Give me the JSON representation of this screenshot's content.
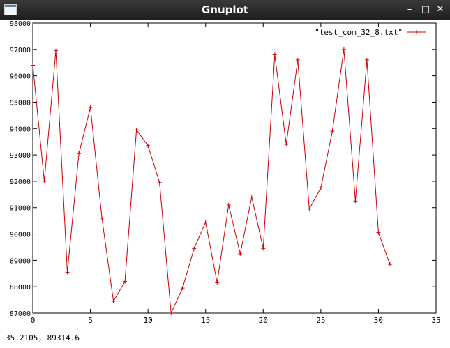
{
  "window": {
    "title": "Gnuplot",
    "icons": {
      "app": "window-icon",
      "minimize": "minimize-icon",
      "maximize": "maximize-icon",
      "close": "close-icon"
    }
  },
  "status": {
    "coordinates": "35.2105,  89314.6"
  },
  "chart_data": {
    "type": "line",
    "title": "",
    "xlabel": "",
    "ylabel": "",
    "xlim": [
      0,
      35
    ],
    "ylim": [
      87000,
      98000
    ],
    "x_ticks": [
      0,
      5,
      10,
      15,
      20,
      25,
      30,
      35
    ],
    "y_ticks": [
      87000,
      88000,
      89000,
      90000,
      91000,
      92000,
      93000,
      94000,
      95000,
      96000,
      97000,
      98000
    ],
    "grid": false,
    "legend_position": "top-right",
    "series": [
      {
        "name": "\"test_com_32_8.txt\"",
        "color": "#cc0000",
        "marker": "plus",
        "x": [
          0,
          1,
          2,
          3,
          4,
          5,
          6,
          7,
          8,
          9,
          10,
          11,
          12,
          13,
          14,
          15,
          16,
          17,
          18,
          19,
          20,
          21,
          22,
          23,
          24,
          25,
          26,
          27,
          28,
          29,
          30,
          31
        ],
        "y": [
          96400,
          92000,
          96950,
          88550,
          93050,
          94800,
          90600,
          87450,
          88200,
          93950,
          93350,
          91950,
          87000,
          87950,
          89450,
          90450,
          88150,
          91100,
          89250,
          91400,
          89450,
          96800,
          93400,
          96600,
          90950,
          91750,
          93900,
          97000,
          91250,
          96600,
          90050,
          88850
        ]
      }
    ]
  }
}
